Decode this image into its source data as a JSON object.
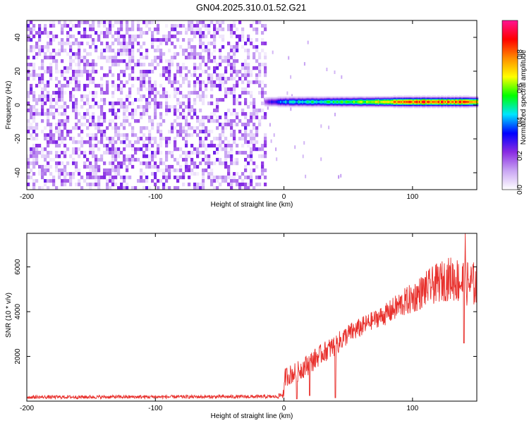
{
  "figure": {
    "title": "GN04.2025.310.01.52.G21"
  },
  "chart_data": [
    {
      "type": "heatmap",
      "title": "GN04.2025.310.01.52.G21",
      "xlabel": "Height of straight line (km)",
      "ylabel": "Frequency (Hz)",
      "xlim": [
        -200,
        150
      ],
      "ylim": [
        -50,
        50
      ],
      "x_ticks": [
        -200,
        -100,
        0,
        100
      ],
      "x_tick_labels": [
        "-200",
        "-100",
        "0",
        "100"
      ],
      "y_ticks": [
        -40,
        -20,
        0,
        20,
        40
      ],
      "y_tick_labels": [
        "-40",
        "-20",
        "0",
        "20",
        "40"
      ],
      "colorbar": {
        "label": "Normalized spectral amplitude",
        "range": [
          0,
          1
        ],
        "ticks": [
          0.0,
          0.2,
          0.4,
          0.6,
          0.8
        ],
        "tick_labels": [
          "0.0",
          "0.2",
          "0.4",
          "0.6",
          "0.8"
        ],
        "colors": [
          "#ffffff",
          "#c9a6f3",
          "#8a2be2",
          "#0000ff",
          "#00e5ff",
          "#00ff00",
          "#ffff00",
          "#ff8c00",
          "#ff0000",
          "#ff1493"
        ]
      },
      "noise_region_x": [
        -200,
        -15
      ],
      "noise_amplitude_range": [
        0.0,
        0.25
      ],
      "signal_band": {
        "x_start": -15,
        "x_end": 150,
        "frequency_center": 2,
        "frequency_halfwidth": 3,
        "peak_amplitude": [
          {
            "x": -15,
            "value": 0.25
          },
          {
            "x": 0,
            "value": 0.5
          },
          {
            "x": 20,
            "value": 0.55
          },
          {
            "x": 50,
            "value": 0.65
          },
          {
            "x": 75,
            "value": 0.8
          },
          {
            "x": 100,
            "value": 0.95
          },
          {
            "x": 130,
            "value": 0.95
          },
          {
            "x": 150,
            "value": 0.9
          }
        ]
      }
    },
    {
      "type": "line",
      "xlabel": "Height of straight line (km)",
      "ylabel": "SNR (10 * v/v)",
      "xlim": [
        -200,
        150
      ],
      "ylim": [
        0,
        7500
      ],
      "x_ticks": [
        -200,
        -100,
        0,
        100
      ],
      "x_tick_labels": [
        "-200",
        "-100",
        "0",
        "100"
      ],
      "y_ticks": [
        2000,
        4000,
        6000
      ],
      "y_tick_labels": [
        "2000",
        "4000",
        "6000"
      ],
      "series": [
        {
          "name": "SNR",
          "color": "#e8302c",
          "envelope": [
            {
              "x": -200,
              "mean": 180,
              "spread": 80
            },
            {
              "x": -5,
              "mean": 200,
              "spread": 80
            },
            {
              "x": 0,
              "mean": 350,
              "spread": 250
            },
            {
              "x": 1,
              "mean": 1100,
              "spread": 450
            },
            {
              "x": 10,
              "mean": 1300,
              "spread": 450
            },
            {
              "x": 20,
              "mean": 1700,
              "spread": 500
            },
            {
              "x": 30,
              "mean": 2150,
              "spread": 450
            },
            {
              "x": 40,
              "mean": 2500,
              "spread": 500
            },
            {
              "x": 50,
              "mean": 3000,
              "spread": 450
            },
            {
              "x": 60,
              "mean": 3300,
              "spread": 450
            },
            {
              "x": 70,
              "mean": 3650,
              "spread": 400
            },
            {
              "x": 80,
              "mean": 3900,
              "spread": 500
            },
            {
              "x": 90,
              "mean": 4300,
              "spread": 600
            },
            {
              "x": 100,
              "mean": 4600,
              "spread": 700
            },
            {
              "x": 110,
              "mean": 5000,
              "spread": 800
            },
            {
              "x": 120,
              "mean": 5300,
              "spread": 900
            },
            {
              "x": 130,
              "mean": 5500,
              "spread": 1000
            },
            {
              "x": 140,
              "mean": 5300,
              "spread": 1100
            },
            {
              "x": 150,
              "mean": 5200,
              "spread": 1000
            }
          ],
          "dips": [
            {
              "x": 10,
              "value": 100
            },
            {
              "x": 20,
              "value": 250
            },
            {
              "x": 40,
              "value": 150
            },
            {
              "x": 140,
              "value": 2600
            }
          ],
          "peak": {
            "x": 141,
            "value": 7500
          }
        }
      ]
    }
  ]
}
